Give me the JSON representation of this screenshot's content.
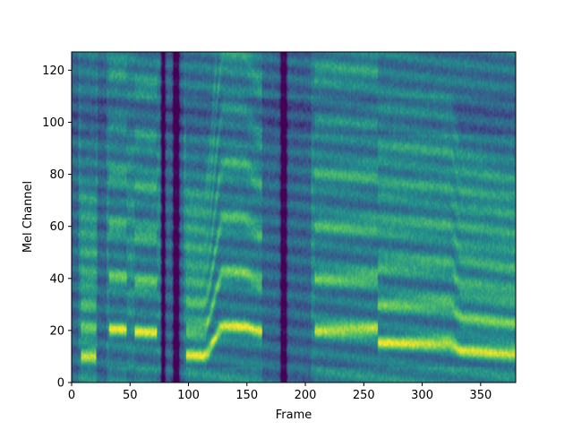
{
  "chart_data": {
    "type": "heatmap",
    "title": "",
    "xlabel": "Frame",
    "ylabel": "Mel Channel",
    "xlim": [
      0,
      380
    ],
    "ylim": [
      0,
      127
    ],
    "x_ticks": [
      0,
      50,
      100,
      150,
      200,
      250,
      300,
      350
    ],
    "y_ticks": [
      0,
      20,
      40,
      60,
      80,
      100,
      120
    ],
    "colormap": "viridis",
    "colormap_stops": [
      "#440154",
      "#3b528b",
      "#21918c",
      "#5ec962",
      "#fde725"
    ],
    "grid": false,
    "voiced_segments": [
      {
        "frames": [
          8,
          21
        ],
        "f0_channel": 10
      },
      {
        "frames": [
          32,
          47
        ],
        "f0_channel": 20
      },
      {
        "frames": [
          54,
          73
        ],
        "f0_channel": 19
      },
      {
        "frames": [
          98,
          163
        ],
        "f0_channel": [
          10,
          10,
          21,
          21,
          19
        ],
        "f0_frames": [
          98,
          112,
          130,
          145,
          163
        ]
      },
      {
        "frames": [
          208,
          262
        ],
        "f0_channel": 20
      },
      {
        "frames": [
          262,
          322
        ],
        "f0_channel": 15
      },
      {
        "frames": [
          322,
          380
        ],
        "f0_channel": [
          15,
          12,
          11
        ],
        "f0_frames": [
          322,
          335,
          380
        ]
      }
    ],
    "silence_frames": [
      [
        0,
        6
      ],
      [
        22,
        30
      ],
      [
        76,
        96
      ],
      [
        163,
        205
      ]
    ],
    "dark_bands_frames": [
      78,
      88,
      90,
      180,
      182
    ]
  }
}
